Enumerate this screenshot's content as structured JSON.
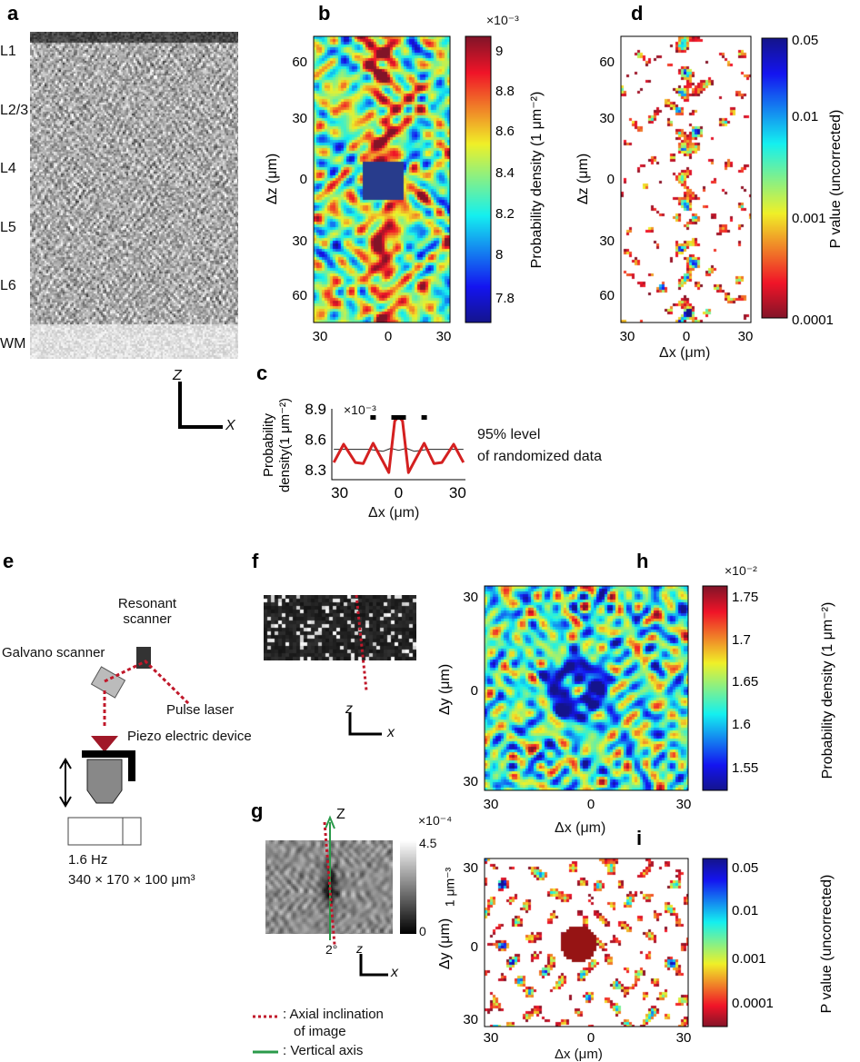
{
  "panels": {
    "a": "a",
    "b": "b",
    "c": "c",
    "d": "d",
    "e": "e",
    "f": "f",
    "g": "g",
    "h": "h",
    "i": "i"
  },
  "a": {
    "layers": [
      "L1",
      "L2/3",
      "L4",
      "L5",
      "L6",
      "WM"
    ],
    "axis_z": "Z",
    "axis_x": "X"
  },
  "b": {
    "ylabel": "Δz (μm)",
    "yticks": [
      "60",
      "30",
      "0",
      "30",
      "60"
    ],
    "xticks": [
      "30",
      "0",
      "30"
    ],
    "cbar_exp": "×10⁻³",
    "cbar_ticks": [
      "9",
      "8.8",
      "8.6",
      "8.4",
      "8.2",
      "8",
      "7.8"
    ],
    "cbar_label": "Probability density (1 μm⁻²)",
    "colormap": "jet"
  },
  "d": {
    "ylabel": "Δz (μm)",
    "yticks": [
      "60",
      "30",
      "0",
      "30",
      "60"
    ],
    "xticks": [
      "30",
      "0",
      "30"
    ],
    "xlabel": "Δx (μm)",
    "cbar_ticks": [
      "0.05",
      "0.01",
      "0.001",
      "0.0001"
    ],
    "cbar_label": "P value (uncorrected)",
    "colormap": "jet-reversed"
  },
  "chart_data": {
    "type": "line",
    "ylabel": "Probability density(1 μm⁻²)",
    "xlabel": "Δx (μm)",
    "y_exponent": "×10⁻³",
    "yticks": [
      "8.9",
      "8.6",
      "8.3"
    ],
    "xticks": [
      "30",
      "0",
      "30"
    ],
    "ylim": [
      8.2,
      8.9
    ],
    "xlim": [
      -34,
      34
    ],
    "series": [
      {
        "color": "#d42020",
        "x": [
          -33,
          -28,
          -22,
          -18,
          -13,
          -8,
          -5,
          -2,
          0,
          2,
          5,
          8,
          13,
          18,
          22,
          28,
          33
        ],
        "y": [
          8.37,
          8.55,
          8.37,
          8.36,
          8.56,
          8.38,
          8.27,
          8.78,
          8.82,
          8.78,
          8.27,
          8.38,
          8.56,
          8.36,
          8.37,
          8.55,
          8.37
        ]
      },
      {
        "color": "#222222",
        "x": [
          -33,
          -15,
          -8,
          -4,
          0,
          4,
          8,
          15,
          33
        ],
        "y": [
          8.5,
          8.5,
          8.48,
          8.51,
          8.49,
          8.51,
          8.48,
          8.5,
          8.5
        ]
      }
    ],
    "significance_marks_x": [
      -13,
      0,
      13
    ],
    "annotation": [
      "95% level",
      "of randomized data"
    ]
  },
  "e": {
    "resonant": [
      "Resonant",
      "scanner"
    ],
    "galvano": "Galvano scanner",
    "laser": "Pulse laser",
    "piezo": "Piezo electric device",
    "freq": "1.6 Hz",
    "volume": "340 × 170 × 100 μm³"
  },
  "f": {
    "axis_z": "z",
    "axis_x": "x"
  },
  "g": {
    "axis_Z": "Z",
    "angle": "2°",
    "axis_z": "z",
    "axis_x": "x",
    "cbar_exp": "×10⁻⁴",
    "cbar_ticks": [
      "4.5",
      "0"
    ],
    "cbar_label": "1 μm⁻³",
    "legend": [
      ": Axial inclination",
      "of image",
      ": Vertical axis"
    ],
    "colors": {
      "inclination": "#c0182a",
      "vertical": "#2a9a4a"
    }
  },
  "h": {
    "ylabel": "Δy (μm)",
    "yticks": [
      "30",
      "0",
      "30"
    ],
    "xticks": [
      "30",
      "0",
      "30"
    ],
    "xlabel": "Δx (μm)",
    "cbar_exp": "×10⁻²",
    "cbar_ticks": [
      "1.75",
      "1.7",
      "1.65",
      "1.6",
      "1.55"
    ],
    "cbar_label": "Probability density (1 μm⁻²)"
  },
  "i": {
    "ylabel": "Δy (μm)",
    "yticks": [
      "30",
      "0",
      "30"
    ],
    "xticks": [
      "30",
      "0",
      "30"
    ],
    "xlabel": "Δx (μm)",
    "cbar_ticks": [
      "0.05",
      "0.01",
      "0.001",
      "0.0001"
    ],
    "cbar_label": "P value (uncorrected)"
  }
}
